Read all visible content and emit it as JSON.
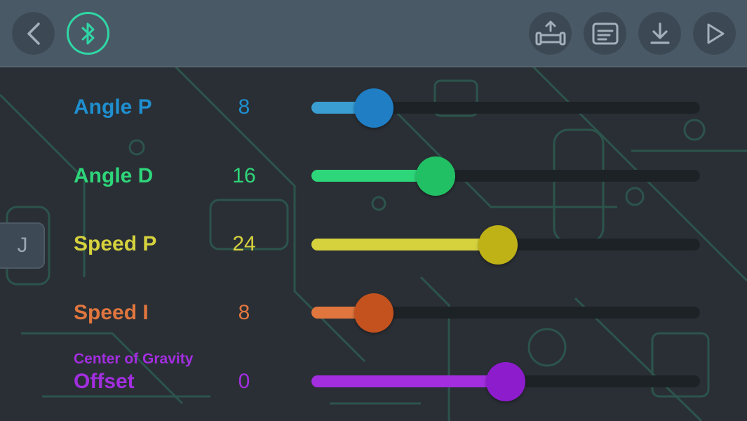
{
  "header": {
    "back_icon": "chevron-left-icon",
    "bluetooth_icon": "bluetooth-icon",
    "upload_icon": "robot-upload-icon",
    "log_icon": "document-icon",
    "download_icon": "download-icon",
    "play_icon": "play-icon"
  },
  "side_tab": {
    "label": "J"
  },
  "params": [
    {
      "label": "Angle P",
      "value": "8",
      "fraction": 0.16,
      "color": "#1e8fd0",
      "fill": "#3a9ed3",
      "thumb": "#1f7ec4"
    },
    {
      "label": "Angle D",
      "value": "16",
      "fraction": 0.32,
      "color": "#2ed67a",
      "fill": "#2ed67a",
      "thumb": "#22c064"
    },
    {
      "label": "Speed P",
      "value": "24",
      "fraction": 0.48,
      "color": "#d6d23e",
      "fill": "#d6d23e",
      "thumb": "#bfb217"
    },
    {
      "label": "Speed I",
      "value": "8",
      "fraction": 0.16,
      "color": "#e0763e",
      "fill": "#e0763e",
      "thumb": "#c4521e"
    },
    {
      "sublabel": "Center of Gravity",
      "label": "Offset",
      "value": "0",
      "fraction": 0.5,
      "color": "#a32ee0",
      "fill": "#a32ee0",
      "thumb": "#8d1ccc"
    }
  ]
}
